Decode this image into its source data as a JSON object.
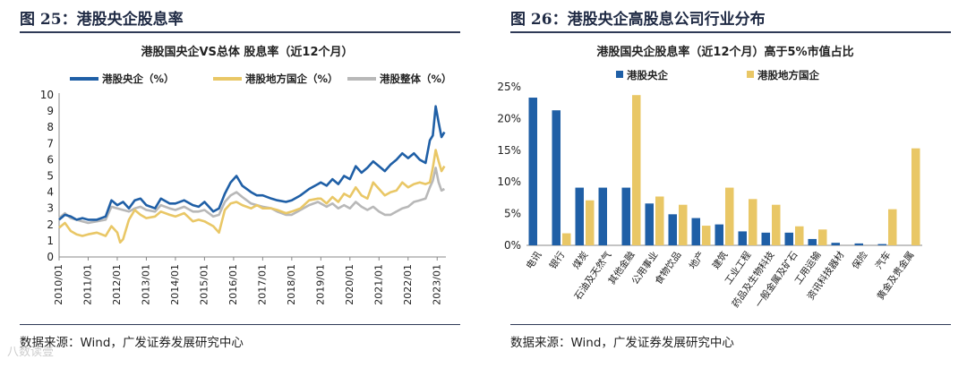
{
  "left": {
    "fig_title": "图 25：港股央企股息率",
    "source": "数据来源：Wind，广发证券发展研究中心",
    "chart_data": {
      "type": "line",
      "title": "港股国央企VS总体 股息率（近12个月）",
      "xlabel": "",
      "ylabel": "",
      "ylim": [
        0,
        10
      ],
      "yticks": [
        "0",
        "1",
        "2",
        "3",
        "4",
        "5",
        "6",
        "7",
        "8",
        "9",
        "10"
      ],
      "xticks": [
        "2010/01",
        "2011/01",
        "2012/01",
        "2013/01",
        "2014/01",
        "2015/01",
        "2016/01",
        "2017/01",
        "2018/01",
        "2019/01",
        "2020/01",
        "2021/01",
        "2022/01",
        "2023/01"
      ],
      "grid": false,
      "legend": "top",
      "x_start": 2010.0,
      "x_end": 2023.3,
      "series": [
        {
          "name": "港股央企（%）",
          "color": "#1f5fa6",
          "points": [
            [
              2010.0,
              2.3
            ],
            [
              2010.2,
              2.6
            ],
            [
              2010.4,
              2.5
            ],
            [
              2010.6,
              2.3
            ],
            [
              2010.8,
              2.4
            ],
            [
              2011.0,
              2.3
            ],
            [
              2011.3,
              2.3
            ],
            [
              2011.6,
              2.5
            ],
            [
              2011.8,
              3.5
            ],
            [
              2012.0,
              3.2
            ],
            [
              2012.2,
              3.4
            ],
            [
              2012.4,
              3.0
            ],
            [
              2012.6,
              3.5
            ],
            [
              2012.8,
              3.6
            ],
            [
              2013.0,
              3.2
            ],
            [
              2013.3,
              3.0
            ],
            [
              2013.5,
              3.6
            ],
            [
              2013.8,
              3.3
            ],
            [
              2014.0,
              3.3
            ],
            [
              2014.3,
              3.5
            ],
            [
              2014.6,
              3.2
            ],
            [
              2014.8,
              3.1
            ],
            [
              2015.0,
              3.4
            ],
            [
              2015.3,
              2.8
            ],
            [
              2015.5,
              3.0
            ],
            [
              2015.7,
              3.9
            ],
            [
              2015.9,
              4.6
            ],
            [
              2016.1,
              5.0
            ],
            [
              2016.3,
              4.4
            ],
            [
              2016.6,
              4.0
            ],
            [
              2016.8,
              3.8
            ],
            [
              2017.0,
              3.8
            ],
            [
              2017.3,
              3.6
            ],
            [
              2017.5,
              3.5
            ],
            [
              2017.8,
              3.4
            ],
            [
              2018.0,
              3.5
            ],
            [
              2018.3,
              3.8
            ],
            [
              2018.6,
              4.2
            ],
            [
              2018.9,
              4.5
            ],
            [
              2019.0,
              4.6
            ],
            [
              2019.2,
              4.4
            ],
            [
              2019.4,
              4.8
            ],
            [
              2019.6,
              4.5
            ],
            [
              2019.8,
              5.0
            ],
            [
              2020.0,
              4.8
            ],
            [
              2020.2,
              5.6
            ],
            [
              2020.4,
              5.2
            ],
            [
              2020.6,
              5.5
            ],
            [
              2020.8,
              5.9
            ],
            [
              2021.0,
              5.6
            ],
            [
              2021.2,
              5.3
            ],
            [
              2021.4,
              5.7
            ],
            [
              2021.6,
              6.0
            ],
            [
              2021.8,
              6.4
            ],
            [
              2022.0,
              6.1
            ],
            [
              2022.2,
              6.4
            ],
            [
              2022.4,
              6.0
            ],
            [
              2022.6,
              5.8
            ],
            [
              2022.75,
              7.2
            ],
            [
              2022.85,
              7.5
            ],
            [
              2022.95,
              9.3
            ],
            [
              2023.05,
              8.3
            ],
            [
              2023.15,
              7.4
            ],
            [
              2023.25,
              7.7
            ]
          ]
        },
        {
          "name": "港股地方国企（%）",
          "color": "#e9c766",
          "points": [
            [
              2010.0,
              1.8
            ],
            [
              2010.2,
              2.1
            ],
            [
              2010.4,
              1.6
            ],
            [
              2010.6,
              1.4
            ],
            [
              2010.8,
              1.3
            ],
            [
              2011.0,
              1.4
            ],
            [
              2011.3,
              1.5
            ],
            [
              2011.6,
              1.3
            ],
            [
              2011.8,
              1.9
            ],
            [
              2012.0,
              1.5
            ],
            [
              2012.1,
              0.9
            ],
            [
              2012.2,
              1.1
            ],
            [
              2012.4,
              2.3
            ],
            [
              2012.6,
              2.9
            ],
            [
              2012.8,
              2.6
            ],
            [
              2013.0,
              2.4
            ],
            [
              2013.3,
              2.5
            ],
            [
              2013.5,
              2.8
            ],
            [
              2013.8,
              2.6
            ],
            [
              2014.0,
              2.5
            ],
            [
              2014.3,
              2.7
            ],
            [
              2014.6,
              2.2
            ],
            [
              2014.8,
              2.3
            ],
            [
              2015.0,
              2.2
            ],
            [
              2015.3,
              1.9
            ],
            [
              2015.5,
              1.5
            ],
            [
              2015.7,
              2.9
            ],
            [
              2015.9,
              3.3
            ],
            [
              2016.1,
              3.4
            ],
            [
              2016.3,
              3.2
            ],
            [
              2016.6,
              3.0
            ],
            [
              2016.8,
              3.2
            ],
            [
              2017.0,
              3.0
            ],
            [
              2017.3,
              3.0
            ],
            [
              2017.5,
              2.9
            ],
            [
              2017.8,
              2.7
            ],
            [
              2018.0,
              2.8
            ],
            [
              2018.3,
              3.0
            ],
            [
              2018.6,
              3.5
            ],
            [
              2018.9,
              3.6
            ],
            [
              2019.0,
              3.6
            ],
            [
              2019.2,
              3.3
            ],
            [
              2019.4,
              3.7
            ],
            [
              2019.6,
              3.4
            ],
            [
              2019.8,
              3.9
            ],
            [
              2020.0,
              3.7
            ],
            [
              2020.2,
              4.3
            ],
            [
              2020.4,
              3.8
            ],
            [
              2020.6,
              3.6
            ],
            [
              2020.8,
              4.6
            ],
            [
              2021.0,
              4.2
            ],
            [
              2021.2,
              3.8
            ],
            [
              2021.4,
              4.0
            ],
            [
              2021.6,
              4.1
            ],
            [
              2021.8,
              4.6
            ],
            [
              2022.0,
              4.3
            ],
            [
              2022.2,
              4.5
            ],
            [
              2022.4,
              4.6
            ],
            [
              2022.6,
              4.5
            ],
            [
              2022.75,
              4.6
            ],
            [
              2022.85,
              5.5
            ],
            [
              2022.95,
              6.6
            ],
            [
              2023.05,
              5.9
            ],
            [
              2023.15,
              5.3
            ],
            [
              2023.25,
              5.6
            ]
          ]
        },
        {
          "name": "港股整体（%）",
          "color": "#b8b8b8",
          "points": [
            [
              2010.0,
              2.4
            ],
            [
              2010.2,
              2.7
            ],
            [
              2010.4,
              2.4
            ],
            [
              2010.6,
              2.3
            ],
            [
              2010.8,
              2.2
            ],
            [
              2011.0,
              2.1
            ],
            [
              2011.3,
              2.2
            ],
            [
              2011.6,
              2.3
            ],
            [
              2011.8,
              3.1
            ],
            [
              2012.0,
              3.0
            ],
            [
              2012.2,
              2.9
            ],
            [
              2012.4,
              2.8
            ],
            [
              2012.6,
              3.0
            ],
            [
              2012.8,
              3.1
            ],
            [
              2013.0,
              2.9
            ],
            [
              2013.3,
              2.8
            ],
            [
              2013.5,
              3.2
            ],
            [
              2013.8,
              3.0
            ],
            [
              2014.0,
              2.9
            ],
            [
              2014.3,
              3.1
            ],
            [
              2014.6,
              2.8
            ],
            [
              2014.8,
              2.8
            ],
            [
              2015.0,
              2.9
            ],
            [
              2015.3,
              2.5
            ],
            [
              2015.5,
              2.6
            ],
            [
              2015.7,
              3.4
            ],
            [
              2015.9,
              3.8
            ],
            [
              2016.1,
              4.0
            ],
            [
              2016.3,
              3.7
            ],
            [
              2016.6,
              3.3
            ],
            [
              2016.8,
              3.2
            ],
            [
              2017.0,
              3.1
            ],
            [
              2017.3,
              3.0
            ],
            [
              2017.5,
              2.8
            ],
            [
              2017.8,
              2.6
            ],
            [
              2018.0,
              2.6
            ],
            [
              2018.3,
              2.9
            ],
            [
              2018.6,
              3.2
            ],
            [
              2018.9,
              3.4
            ],
            [
              2019.0,
              3.3
            ],
            [
              2019.2,
              3.1
            ],
            [
              2019.4,
              3.3
            ],
            [
              2019.6,
              3.0
            ],
            [
              2019.8,
              3.2
            ],
            [
              2020.0,
              3.0
            ],
            [
              2020.2,
              3.4
            ],
            [
              2020.4,
              3.1
            ],
            [
              2020.6,
              2.9
            ],
            [
              2020.8,
              3.1
            ],
            [
              2021.0,
              2.8
            ],
            [
              2021.2,
              2.6
            ],
            [
              2021.4,
              2.6
            ],
            [
              2021.6,
              2.8
            ],
            [
              2021.8,
              3.0
            ],
            [
              2022.0,
              3.1
            ],
            [
              2022.2,
              3.4
            ],
            [
              2022.4,
              3.5
            ],
            [
              2022.6,
              3.6
            ],
            [
              2022.75,
              4.3
            ],
            [
              2022.85,
              4.7
            ],
            [
              2022.95,
              5.5
            ],
            [
              2023.05,
              4.6
            ],
            [
              2023.15,
              4.1
            ],
            [
              2023.25,
              4.2
            ]
          ]
        }
      ]
    }
  },
  "right": {
    "fig_title": "图 26：港股央企高股息公司行业分布",
    "source": "数据来源：Wind，广发证券发展研究中心",
    "chart_data": {
      "type": "bar",
      "title": "港股国央企股息率（近12个月）高于5%市值占比",
      "xlabel": "",
      "ylabel": "",
      "ylim": [
        0,
        25
      ],
      "yticks": [
        "0%",
        "5%",
        "10%",
        "15%",
        "20%",
        "25%"
      ],
      "grid": false,
      "legend": "top-left",
      "categories": [
        "电讯",
        "银行",
        "煤炭",
        "石油及天然气",
        "其他金融",
        "公用事业",
        "食物饮品",
        "地产",
        "建筑",
        "工业工程",
        "药品及生物科技",
        "一般金属及矿石",
        "工用运输",
        "资讯科技器材",
        "保险",
        "汽车",
        "黄金及贵金属"
      ],
      "series": [
        {
          "name": "港股央企",
          "color": "#1f5fa6",
          "values": [
            23.3,
            21.3,
            9.1,
            9.1,
            9.1,
            6.6,
            4.9,
            4.3,
            3.3,
            2.2,
            2.0,
            2.0,
            1.0,
            0.4,
            0.3,
            0.2,
            0.0
          ]
        },
        {
          "name": "港股地方国企",
          "color": "#e9c766",
          "values": [
            0.0,
            1.9,
            7.1,
            0.0,
            23.7,
            7.7,
            6.4,
            3.1,
            9.1,
            7.3,
            6.4,
            3.0,
            2.5,
            0.0,
            0.0,
            5.7,
            15.3
          ]
        }
      ]
    }
  },
  "watermark": "八数读壹"
}
